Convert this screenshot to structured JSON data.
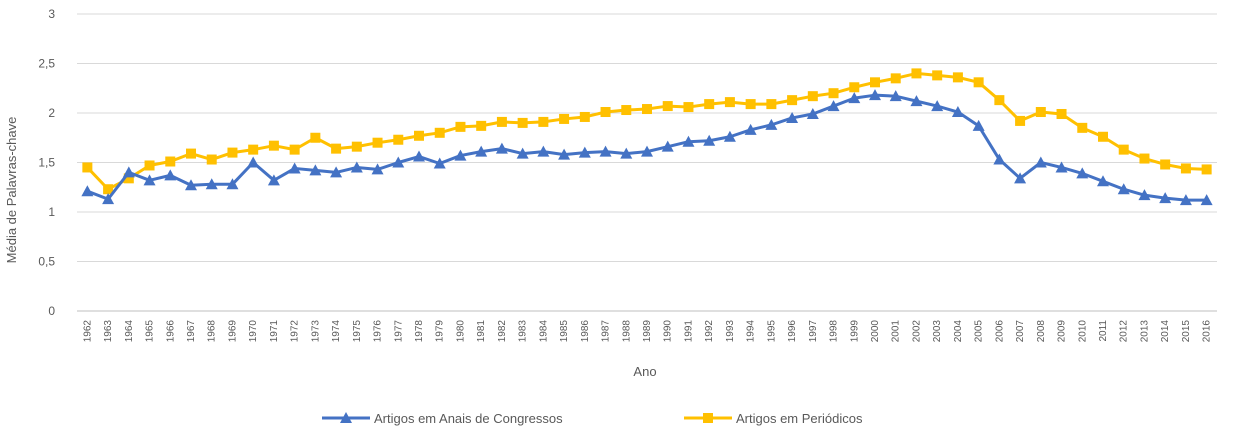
{
  "chart_data": {
    "type": "line",
    "title": "",
    "xlabel": "Ano",
    "ylabel": "Média de Palavras-chave",
    "ylim": [
      0,
      3
    ],
    "y_ticks": [
      "0",
      "0,5",
      "1",
      "1,5",
      "2",
      "2,5",
      "3"
    ],
    "grid": "horizontal",
    "legend_position": "bottom",
    "categories": [
      "1962",
      "1963",
      "1964",
      "1965",
      "1966",
      "1967",
      "1968",
      "1969",
      "1970",
      "1971",
      "1972",
      "1973",
      "1974",
      "1975",
      "1976",
      "1977",
      "1978",
      "1979",
      "1980",
      "1981",
      "1982",
      "1983",
      "1984",
      "1985",
      "1986",
      "1987",
      "1988",
      "1989",
      "1990",
      "1991",
      "1992",
      "1993",
      "1994",
      "1995",
      "1996",
      "1997",
      "1998",
      "1999",
      "2000",
      "2001",
      "2002",
      "2003",
      "2004",
      "2005",
      "2006",
      "2007",
      "2008",
      "2009",
      "2010",
      "2011",
      "2012",
      "2013",
      "2014",
      "2015",
      "2016"
    ],
    "series": [
      {
        "name": "Artigos em Anais de Congressos",
        "color": "#4472C4",
        "marker": "triangle",
        "values": [
          1.21,
          1.13,
          1.4,
          1.32,
          1.37,
          1.27,
          1.28,
          1.28,
          1.5,
          1.32,
          1.44,
          1.42,
          1.4,
          1.45,
          1.43,
          1.5,
          1.56,
          1.49,
          1.57,
          1.61,
          1.64,
          1.59,
          1.61,
          1.58,
          1.6,
          1.61,
          1.59,
          1.61,
          1.66,
          1.71,
          1.72,
          1.76,
          1.83,
          1.88,
          1.95,
          1.99,
          2.07,
          2.15,
          2.18,
          2.17,
          2.12,
          2.07,
          2.01,
          1.87,
          1.53,
          1.34,
          1.5,
          1.45,
          1.39,
          1.31,
          1.23,
          1.17,
          1.14,
          1.12,
          1.12
        ]
      },
      {
        "name": "Artigos em Periódicos",
        "color": "#FFC000",
        "marker": "square",
        "values": [
          1.45,
          1.23,
          1.34,
          1.47,
          1.51,
          1.59,
          1.53,
          1.6,
          1.63,
          1.67,
          1.63,
          1.75,
          1.64,
          1.66,
          1.7,
          1.73,
          1.77,
          1.8,
          1.86,
          1.87,
          1.91,
          1.9,
          1.91,
          1.94,
          1.96,
          2.01,
          2.03,
          2.04,
          2.07,
          2.06,
          2.09,
          2.11,
          2.09,
          2.09,
          2.13,
          2.17,
          2.2,
          2.26,
          2.31,
          2.35,
          2.4,
          2.38,
          2.36,
          2.31,
          2.13,
          1.92,
          2.01,
          1.99,
          1.85,
          1.76,
          1.63,
          1.54,
          1.48,
          1.44,
          1.43
        ]
      }
    ]
  }
}
